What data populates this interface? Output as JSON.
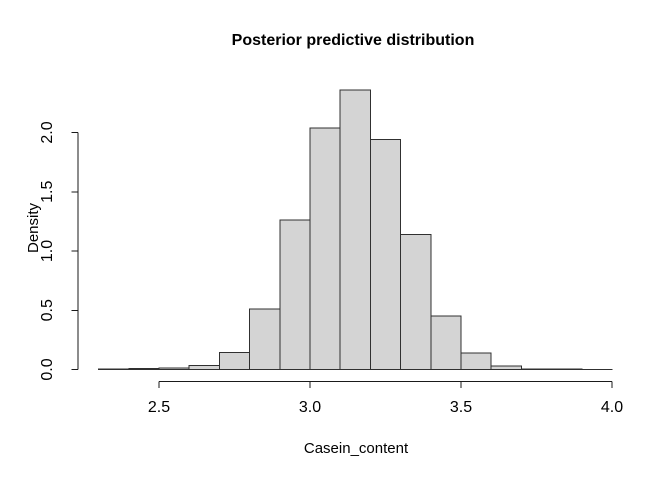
{
  "figure": {
    "background": "#ffffff"
  },
  "chart_data": {
    "type": "bar",
    "subtype": "histogram",
    "title": "Posterior predictive distribution",
    "xlabel": "Casein_content",
    "ylabel": "Density",
    "bin_edges": [
      2.3,
      2.4,
      2.5,
      2.6,
      2.7,
      2.8,
      2.9,
      3.0,
      3.1,
      3.2,
      3.3,
      3.4,
      3.5,
      3.6,
      3.7,
      3.8,
      3.9,
      4.0
    ],
    "densities": [
      0.004,
      0.008,
      0.014,
      0.032,
      0.145,
      0.51,
      1.26,
      2.04,
      2.36,
      1.94,
      1.14,
      0.45,
      0.14,
      0.028,
      0.006,
      0.004,
      0.002
    ],
    "x_ticks": [
      2.5,
      3.0,
      3.5,
      4.0
    ],
    "x_tick_labels": [
      "2.5",
      "3.0",
      "3.5",
      "4.0"
    ],
    "y_ticks": [
      0.0,
      0.5,
      1.0,
      1.5,
      2.0
    ],
    "y_tick_labels": [
      "0.0",
      "0.5",
      "1.0",
      "1.5",
      "2.0"
    ],
    "xlim": [
      2.3,
      4.0
    ],
    "ylim": [
      0,
      2.4
    ],
    "grid": false,
    "legend": false,
    "bar_fill": "#d4d4d4",
    "bar_stroke": "#303030",
    "axis_color": "#1a1a1a",
    "text_color": "#000000"
  }
}
